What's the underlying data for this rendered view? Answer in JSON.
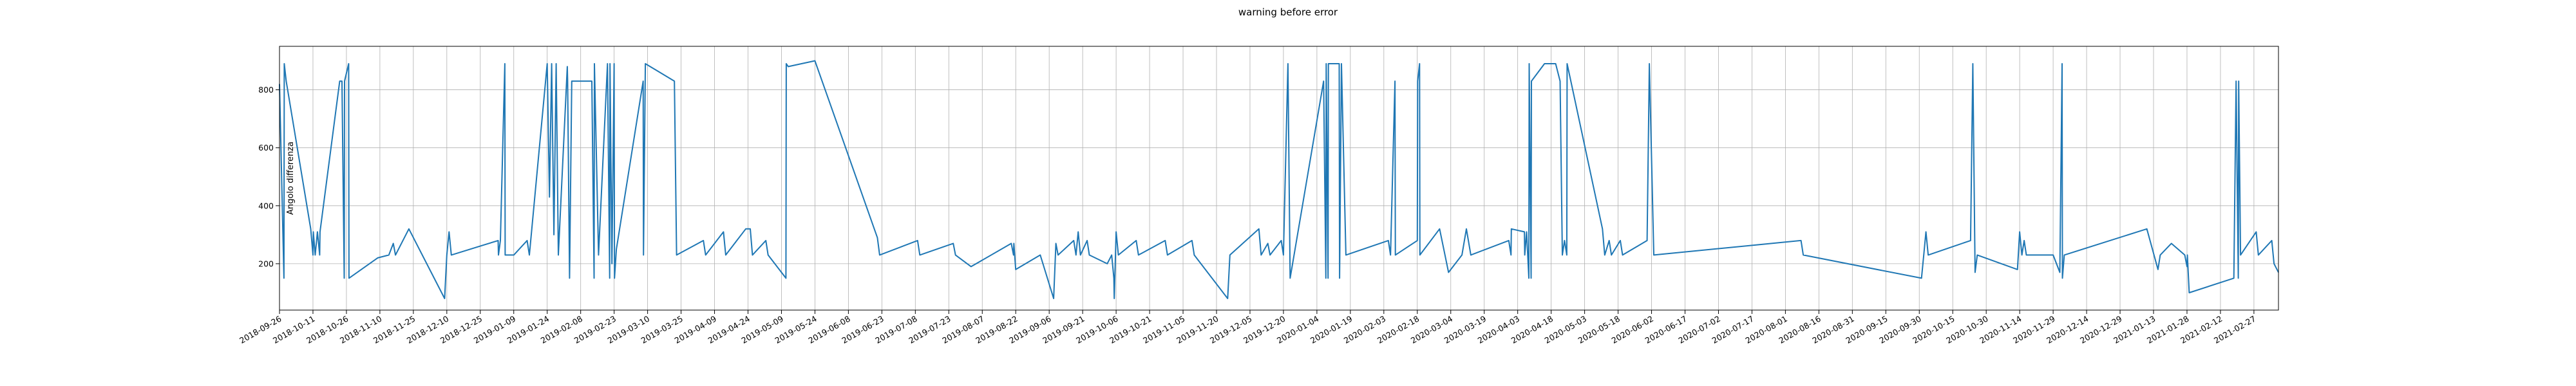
{
  "chart_data": {
    "type": "line",
    "title": "warning before error",
    "xlabel": "",
    "ylabel": "Angolo differenza",
    "grid": true,
    "legend": "none",
    "xlim": [
      "2018-09-26",
      "2021-03-10"
    ],
    "ylim": [
      40,
      950
    ],
    "yticks": [
      200,
      400,
      600,
      800
    ],
    "xticks": [
      "2018-09-26",
      "2018-10-11",
      "2018-10-26",
      "2018-11-10",
      "2018-11-25",
      "2018-12-10",
      "2018-12-25",
      "2019-01-09",
      "2019-01-24",
      "2019-02-08",
      "2019-02-23",
      "2019-03-10",
      "2019-03-25",
      "2019-04-09",
      "2019-04-24",
      "2019-05-09",
      "2019-05-24",
      "2019-06-08",
      "2019-06-23",
      "2019-07-08",
      "2019-07-23",
      "2019-08-07",
      "2019-08-22",
      "2019-09-06",
      "2019-09-21",
      "2019-10-06",
      "2019-10-21",
      "2019-11-05",
      "2019-11-20",
      "2019-12-05",
      "2019-12-20",
      "2020-01-04",
      "2020-01-19",
      "2020-02-03",
      "2020-02-18",
      "2020-03-04",
      "2020-03-19",
      "2020-04-03",
      "2020-04-18",
      "2020-05-03",
      "2020-05-18",
      "2020-06-02",
      "2020-06-17",
      "2020-07-02",
      "2020-07-17",
      "2020-08-01",
      "2020-08-16",
      "2020-08-31",
      "2020-09-15",
      "2020-09-30",
      "2020-10-15",
      "2020-10-30",
      "2020-11-14",
      "2020-11-29",
      "2020-12-14",
      "2020-12-29",
      "2021-01-13",
      "2021-01-28",
      "2021-02-12",
      "2021-02-27"
    ],
    "series": [
      {
        "color": "#1f77b4",
        "points": [
          [
            "2018-09-26",
            820
          ],
          [
            "2018-09-28",
            150
          ],
          [
            "2018-09-28",
            890
          ],
          [
            "2018-09-29",
            830
          ],
          [
            "2018-10-10",
            320
          ],
          [
            "2018-10-11",
            230
          ],
          [
            "2018-10-11",
            310
          ],
          [
            "2018-10-12",
            230
          ],
          [
            "2018-10-13",
            310
          ],
          [
            "2018-10-14",
            230
          ],
          [
            "2018-10-14",
            310
          ],
          [
            "2018-10-23",
            830
          ],
          [
            "2018-10-24",
            830
          ],
          [
            "2018-10-25",
            150
          ],
          [
            "2018-10-25",
            830
          ],
          [
            "2018-10-27",
            890
          ],
          [
            "2018-10-27",
            150
          ],
          [
            "2018-11-09",
            220
          ],
          [
            "2018-11-14",
            230
          ],
          [
            "2018-11-16",
            270
          ],
          [
            "2018-11-17",
            230
          ],
          [
            "2018-11-23",
            320
          ],
          [
            "2018-12-09",
            80
          ],
          [
            "2018-12-10",
            230
          ],
          [
            "2018-12-11",
            310
          ],
          [
            "2018-12-12",
            230
          ],
          [
            "2019-01-02",
            280
          ],
          [
            "2019-01-02",
            230
          ],
          [
            "2019-01-03",
            280
          ],
          [
            "2019-01-05",
            890
          ],
          [
            "2019-01-05",
            230
          ],
          [
            "2019-01-09",
            230
          ],
          [
            "2019-01-15",
            280
          ],
          [
            "2019-01-16",
            230
          ],
          [
            "2019-01-24",
            890
          ],
          [
            "2019-01-25",
            430
          ],
          [
            "2019-01-26",
            890
          ],
          [
            "2019-01-27",
            300
          ],
          [
            "2019-01-28",
            890
          ],
          [
            "2019-01-29",
            230
          ],
          [
            "2019-02-02",
            880
          ],
          [
            "2019-02-02",
            830
          ],
          [
            "2019-02-03",
            150
          ],
          [
            "2019-02-04",
            830
          ],
          [
            "2019-02-13",
            830
          ],
          [
            "2019-02-14",
            150
          ],
          [
            "2019-02-14",
            890
          ],
          [
            "2019-02-16",
            230
          ],
          [
            "2019-02-20",
            890
          ],
          [
            "2019-02-21",
            150
          ],
          [
            "2019-02-21",
            890
          ],
          [
            "2019-02-22",
            200
          ],
          [
            "2019-02-23",
            890
          ],
          [
            "2019-02-23",
            150
          ],
          [
            "2019-02-24",
            250
          ],
          [
            "2019-03-08",
            830
          ],
          [
            "2019-03-08",
            230
          ],
          [
            "2019-03-09",
            890
          ],
          [
            "2019-03-22",
            830
          ],
          [
            "2019-03-23",
            230
          ],
          [
            "2019-04-04",
            280
          ],
          [
            "2019-04-05",
            230
          ],
          [
            "2019-04-13",
            310
          ],
          [
            "2019-04-14",
            230
          ],
          [
            "2019-04-23",
            320
          ],
          [
            "2019-04-25",
            320
          ],
          [
            "2019-04-26",
            230
          ],
          [
            "2019-05-02",
            280
          ],
          [
            "2019-05-03",
            230
          ],
          [
            "2019-05-11",
            150
          ],
          [
            "2019-05-11",
            890
          ],
          [
            "2019-05-12",
            880
          ],
          [
            "2019-05-24",
            900
          ],
          [
            "2019-06-21",
            290
          ],
          [
            "2019-06-22",
            230
          ],
          [
            "2019-07-09",
            280
          ],
          [
            "2019-07-10",
            230
          ],
          [
            "2019-07-25",
            270
          ],
          [
            "2019-07-26",
            230
          ],
          [
            "2019-08-02",
            190
          ],
          [
            "2019-08-20",
            270
          ],
          [
            "2019-08-21",
            230
          ],
          [
            "2019-08-21",
            270
          ],
          [
            "2019-08-22",
            180
          ],
          [
            "2019-09-02",
            230
          ],
          [
            "2019-09-08",
            80
          ],
          [
            "2019-09-09",
            270
          ],
          [
            "2019-09-10",
            230
          ],
          [
            "2019-09-17",
            280
          ],
          [
            "2019-09-18",
            230
          ],
          [
            "2019-09-19",
            310
          ],
          [
            "2019-09-20",
            230
          ],
          [
            "2019-09-23",
            280
          ],
          [
            "2019-09-24",
            230
          ],
          [
            "2019-10-02",
            200
          ],
          [
            "2019-10-04",
            230
          ],
          [
            "2019-10-05",
            150
          ],
          [
            "2019-10-05",
            80
          ],
          [
            "2019-10-06",
            310
          ],
          [
            "2019-10-07",
            230
          ],
          [
            "2019-10-15",
            280
          ],
          [
            "2019-10-16",
            230
          ],
          [
            "2019-10-28",
            280
          ],
          [
            "2019-10-29",
            230
          ],
          [
            "2019-11-09",
            280
          ],
          [
            "2019-11-10",
            230
          ],
          [
            "2019-11-25",
            80
          ],
          [
            "2019-11-26",
            230
          ],
          [
            "2019-12-09",
            320
          ],
          [
            "2019-12-10",
            230
          ],
          [
            "2019-12-13",
            270
          ],
          [
            "2019-12-14",
            230
          ],
          [
            "2019-12-19",
            280
          ],
          [
            "2019-12-20",
            230
          ],
          [
            "2019-12-22",
            890
          ],
          [
            "2019-12-23",
            150
          ],
          [
            "2020-01-07",
            830
          ],
          [
            "2020-01-08",
            150
          ],
          [
            "2020-01-08",
            890
          ],
          [
            "2020-01-09",
            150
          ],
          [
            "2020-01-09",
            890
          ],
          [
            "2020-01-14",
            890
          ],
          [
            "2020-01-14",
            150
          ],
          [
            "2020-01-15",
            890
          ],
          [
            "2020-01-17",
            230
          ],
          [
            "2020-02-05",
            280
          ],
          [
            "2020-02-06",
            230
          ],
          [
            "2020-02-08",
            830
          ],
          [
            "2020-02-08",
            230
          ],
          [
            "2020-02-18",
            280
          ],
          [
            "2020-02-18",
            830
          ],
          [
            "2020-02-19",
            890
          ],
          [
            "2020-02-19",
            230
          ],
          [
            "2020-02-28",
            320
          ],
          [
            "2020-03-03",
            170
          ],
          [
            "2020-03-09",
            230
          ],
          [
            "2020-03-11",
            320
          ],
          [
            "2020-03-13",
            230
          ],
          [
            "2020-03-30",
            280
          ],
          [
            "2020-03-31",
            230
          ],
          [
            "2020-03-31",
            320
          ],
          [
            "2020-04-06",
            310
          ],
          [
            "2020-04-06",
            230
          ],
          [
            "2020-04-07",
            310
          ],
          [
            "2020-04-08",
            150
          ],
          [
            "2020-04-08",
            890
          ],
          [
            "2020-04-09",
            150
          ],
          [
            "2020-04-09",
            830
          ],
          [
            "2020-04-15",
            890
          ],
          [
            "2020-04-20",
            890
          ],
          [
            "2020-04-22",
            830
          ],
          [
            "2020-04-23",
            230
          ],
          [
            "2020-04-24",
            280
          ],
          [
            "2020-04-25",
            230
          ],
          [
            "2020-04-25",
            890
          ],
          [
            "2020-05-11",
            320
          ],
          [
            "2020-05-12",
            230
          ],
          [
            "2020-05-14",
            280
          ],
          [
            "2020-05-15",
            230
          ],
          [
            "2020-05-19",
            280
          ],
          [
            "2020-05-20",
            230
          ],
          [
            "2020-05-31",
            280
          ],
          [
            "2020-06-01",
            890
          ],
          [
            "2020-06-03",
            230
          ],
          [
            "2020-08-08",
            280
          ],
          [
            "2020-08-09",
            230
          ],
          [
            "2020-10-01",
            150
          ],
          [
            "2020-10-02",
            230
          ],
          [
            "2020-10-03",
            310
          ],
          [
            "2020-10-04",
            230
          ],
          [
            "2020-10-23",
            280
          ],
          [
            "2020-10-24",
            890
          ],
          [
            "2020-10-25",
            170
          ],
          [
            "2020-10-26",
            230
          ],
          [
            "2020-11-13",
            180
          ],
          [
            "2020-11-14",
            310
          ],
          [
            "2020-11-15",
            230
          ],
          [
            "2020-11-16",
            280
          ],
          [
            "2020-11-17",
            230
          ],
          [
            "2020-11-29",
            230
          ],
          [
            "2020-12-02",
            170
          ],
          [
            "2020-12-03",
            890
          ],
          [
            "2020-12-03",
            150
          ],
          [
            "2020-12-04",
            230
          ],
          [
            "2021-01-10",
            320
          ],
          [
            "2021-01-15",
            180
          ],
          [
            "2021-01-16",
            230
          ],
          [
            "2021-01-21",
            270
          ],
          [
            "2021-01-27",
            230
          ],
          [
            "2021-01-28",
            190
          ],
          [
            "2021-01-28",
            230
          ],
          [
            "2021-01-29",
            100
          ],
          [
            "2021-02-18",
            150
          ],
          [
            "2021-02-19",
            830
          ],
          [
            "2021-02-20",
            150
          ],
          [
            "2021-02-20",
            830
          ],
          [
            "2021-02-21",
            230
          ],
          [
            "2021-02-28",
            310
          ],
          [
            "2021-03-01",
            230
          ],
          [
            "2021-03-07",
            280
          ],
          [
            "2021-03-08",
            200
          ],
          [
            "2021-03-10",
            170
          ]
        ]
      }
    ]
  }
}
